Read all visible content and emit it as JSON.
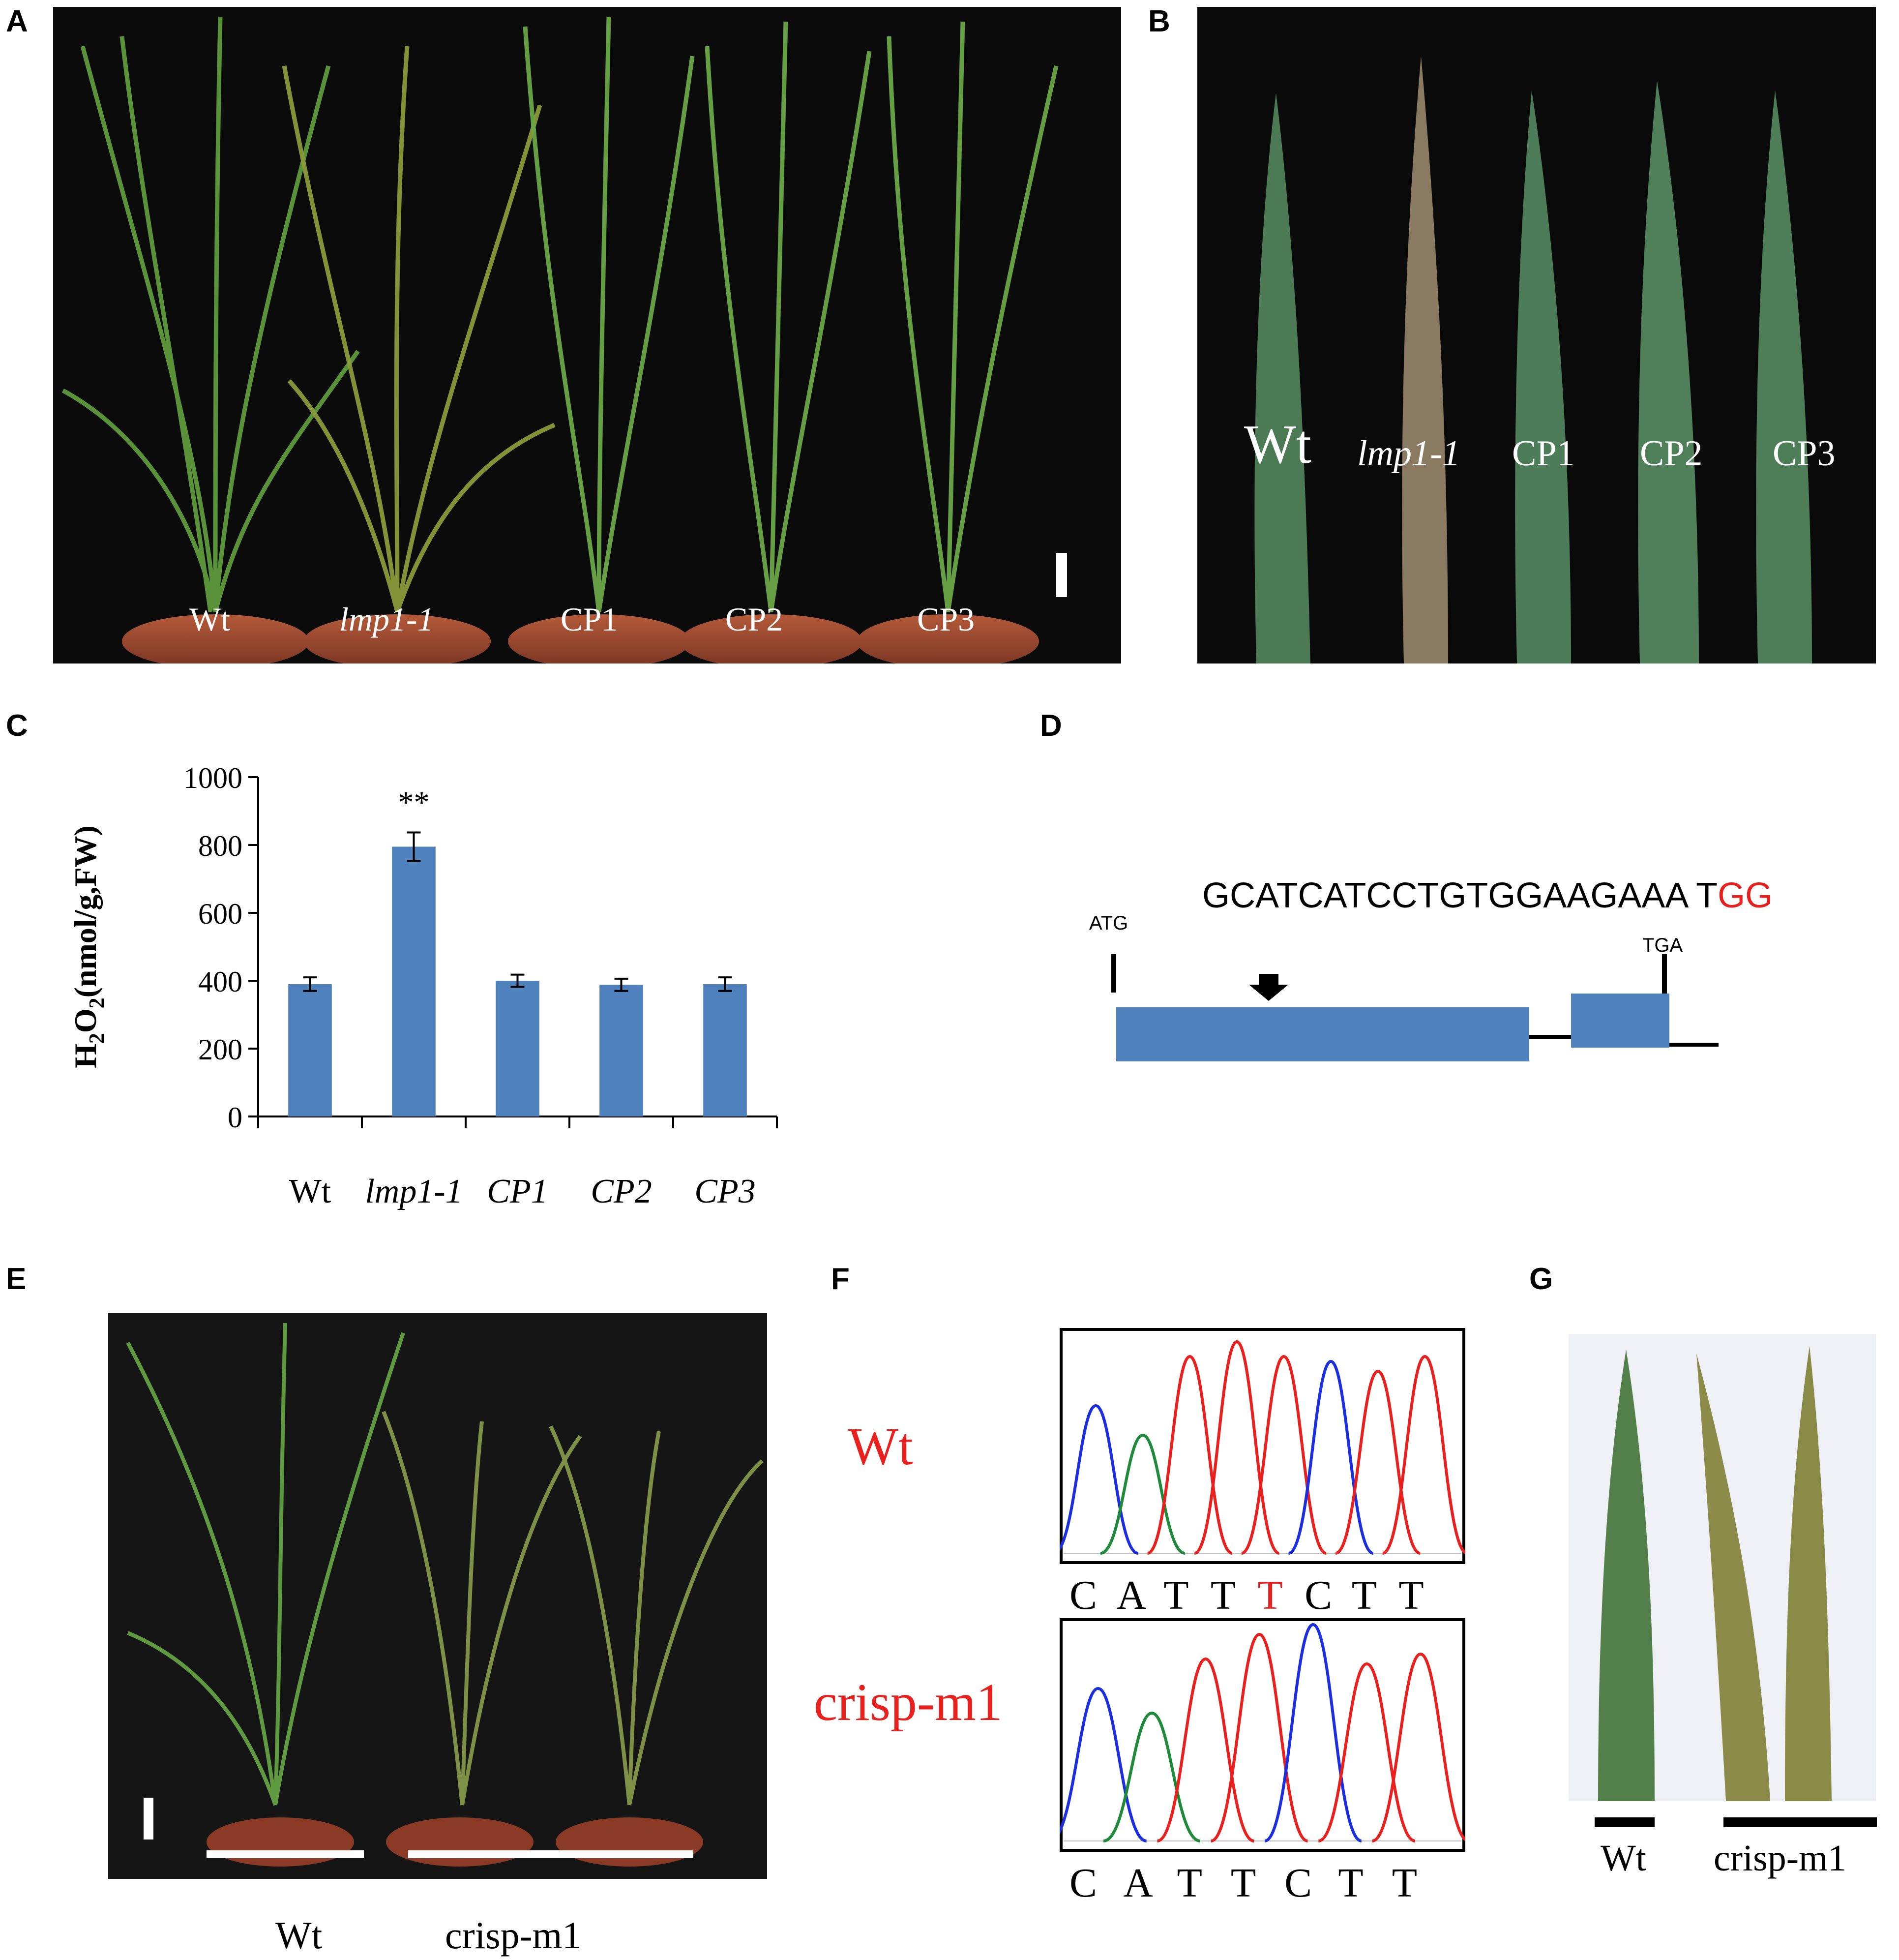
{
  "panels": {
    "a": {
      "label": "A",
      "genotypes": [
        "Wt",
        "lmp1-1",
        "CP1",
        "CP2",
        "CP3"
      ]
    },
    "b": {
      "label": "B",
      "genotypes": [
        "Wt",
        "lmp1-1",
        "CP1",
        "CP2",
        "CP3"
      ]
    },
    "c": {
      "label": "C"
    },
    "d": {
      "label": "D",
      "sequence_black": "GCATCATCCTGTGGAAGAAA T",
      "sequence_red": "GG",
      "start_codon": "ATG",
      "stop_codon": "TGA"
    },
    "e": {
      "label": "E",
      "wt": "Wt",
      "mutant": "crisp-m1"
    },
    "f": {
      "label": "F",
      "wt_name": "Wt",
      "mut_name": "crisp-m1",
      "wt_bases": [
        "C",
        "A",
        "T",
        "T",
        "T",
        "C",
        "T",
        "T"
      ],
      "wt_highlight_index": 4,
      "mut_bases": [
        "C",
        "A",
        "T",
        "T",
        "C",
        "T",
        "T"
      ]
    },
    "g": {
      "label": "G",
      "wt": "Wt",
      "mutant": "crisp-m1"
    }
  },
  "chart_data": {
    "type": "bar",
    "categories": [
      "Wt",
      "lmp1-1",
      "CP1",
      "CP2",
      "CP3"
    ],
    "values": [
      390,
      795,
      400,
      388,
      390
    ],
    "errors": [
      20,
      42,
      18,
      18,
      20
    ],
    "ylabel": "H2O2(nmol/g,FW)",
    "ylim": [
      0,
      1000
    ],
    "yticks": [
      "0",
      "200",
      "400",
      "600",
      "800",
      "1000"
    ],
    "annotations": [
      {
        "category": "lmp1-1",
        "text": "**"
      }
    ],
    "bar_color": "#4f81bd"
  },
  "colors": {
    "trace_red": "#e8201e",
    "trace_blue": "#1b2fe0",
    "trace_green": "#1e8a3a",
    "highlight": "#e8201e",
    "plant_green": "#4f8a3a"
  }
}
